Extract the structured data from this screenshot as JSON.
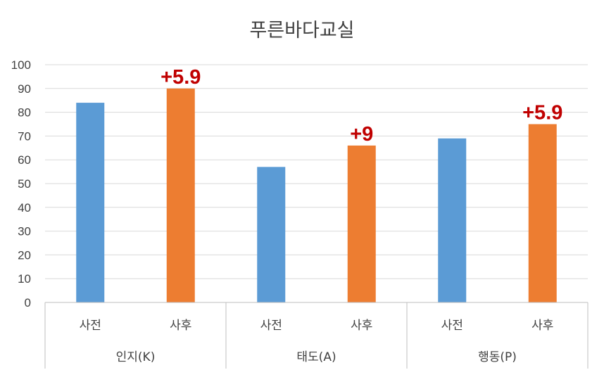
{
  "chart_data": {
    "type": "bar",
    "title": "푸른바다교실",
    "ylim": [
      0,
      100
    ],
    "yticks": [
      0,
      10,
      20,
      30,
      40,
      50,
      60,
      70,
      80,
      90,
      100
    ],
    "grid": true,
    "groups": [
      {
        "label": "인지(K)",
        "bars": [
          {
            "label": "사전",
            "value": 84,
            "color": "#5b9bd5",
            "annotation": ""
          },
          {
            "label": "사후",
            "value": 90,
            "color": "#ed7d31",
            "annotation": "+5.9"
          }
        ]
      },
      {
        "label": "태도(A)",
        "bars": [
          {
            "label": "사전",
            "value": 57,
            "color": "#5b9bd5",
            "annotation": ""
          },
          {
            "label": "사후",
            "value": 66,
            "color": "#ed7d31",
            "annotation": "+9"
          }
        ]
      },
      {
        "label": "행동(P)",
        "bars": [
          {
            "label": "사전",
            "value": 69,
            "color": "#5b9bd5",
            "annotation": ""
          },
          {
            "label": "사후",
            "value": 75,
            "color": "#ed7d31",
            "annotation": "+5.9"
          }
        ]
      }
    ],
    "colors": {
      "pre": "#5b9bd5",
      "post": "#ed7d31",
      "annotation": "#c00000"
    }
  }
}
